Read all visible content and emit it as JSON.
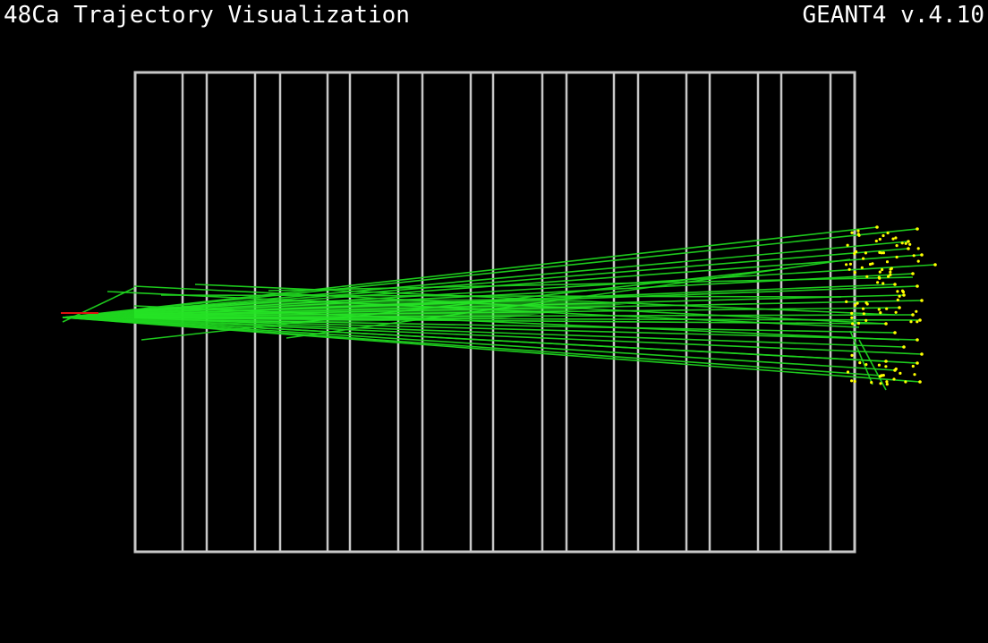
{
  "window": {
    "title": "48Ca Trajectory Visualization",
    "version_label": "GEANT4 v.4.10"
  },
  "scene": {
    "background_color": "#000000",
    "detector_frame_color": "#c8c8c8",
    "detector_plane_count": 19,
    "trajectory_color": "#1fd41f",
    "trajectory_core_color": "#2af02a",
    "hit_point_color": "#ffff00",
    "primary_vertex_color": "#e01010",
    "icons": [
      "detector-frame",
      "detector-plane",
      "particle-track",
      "hit-point",
      "primary-vertex"
    ]
  }
}
